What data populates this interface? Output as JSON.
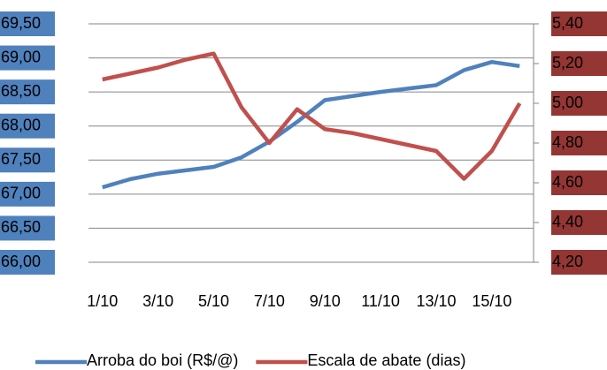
{
  "chart_data": {
    "type": "line",
    "categories": [
      "1/10",
      null,
      "3/10",
      null,
      "5/10",
      null,
      "7/10",
      null,
      "9/10",
      null,
      "11/10",
      null,
      "13/10",
      null,
      "15/10",
      null
    ],
    "series": [
      {
        "name": "Arroba do boi (R$/@)",
        "color": "#4f81bd",
        "axis": "y",
        "values": [
          67.1,
          67.22,
          67.3,
          67.35,
          67.4,
          67.54,
          67.77,
          68.06,
          68.38,
          68.44,
          68.5,
          68.55,
          68.6,
          68.82,
          68.94,
          68.88
        ]
      },
      {
        "name": "Escala de abate (dias)",
        "color": "#c0504d",
        "axis": "y2",
        "values": [
          5.12,
          5.15,
          5.18,
          5.22,
          5.25,
          4.98,
          4.8,
          4.97,
          4.87,
          4.85,
          4.82,
          4.79,
          4.76,
          4.62,
          4.76,
          5.0
        ]
      }
    ],
    "ylim": [
      66.0,
      69.5
    ],
    "yticks": [
      {
        "value": 66.0,
        "label": "66,00"
      },
      {
        "value": 66.5,
        "label": "66,50"
      },
      {
        "value": 67.0,
        "label": "67,00"
      },
      {
        "value": 67.5,
        "label": "67,50"
      },
      {
        "value": 68.0,
        "label": "68,00"
      },
      {
        "value": 68.5,
        "label": "68,50"
      },
      {
        "value": 69.0,
        "label": "69,00"
      },
      {
        "value": 69.5,
        "label": "69,50"
      }
    ],
    "y2lim": [
      4.2,
      5.4
    ],
    "y2ticks": [
      {
        "value": 4.2,
        "label": "4,20"
      },
      {
        "value": 4.4,
        "label": "4,40"
      },
      {
        "value": 4.6,
        "label": "4,60"
      },
      {
        "value": 4.8,
        "label": "4,80"
      },
      {
        "value": 5.0,
        "label": "5,00"
      },
      {
        "value": 5.2,
        "label": "5,20"
      },
      {
        "value": 5.4,
        "label": "5,40"
      }
    ],
    "grid": true,
    "legend": "bottom",
    "ytick_background": "#4f81bd",
    "y2tick_background": "#943634"
  }
}
